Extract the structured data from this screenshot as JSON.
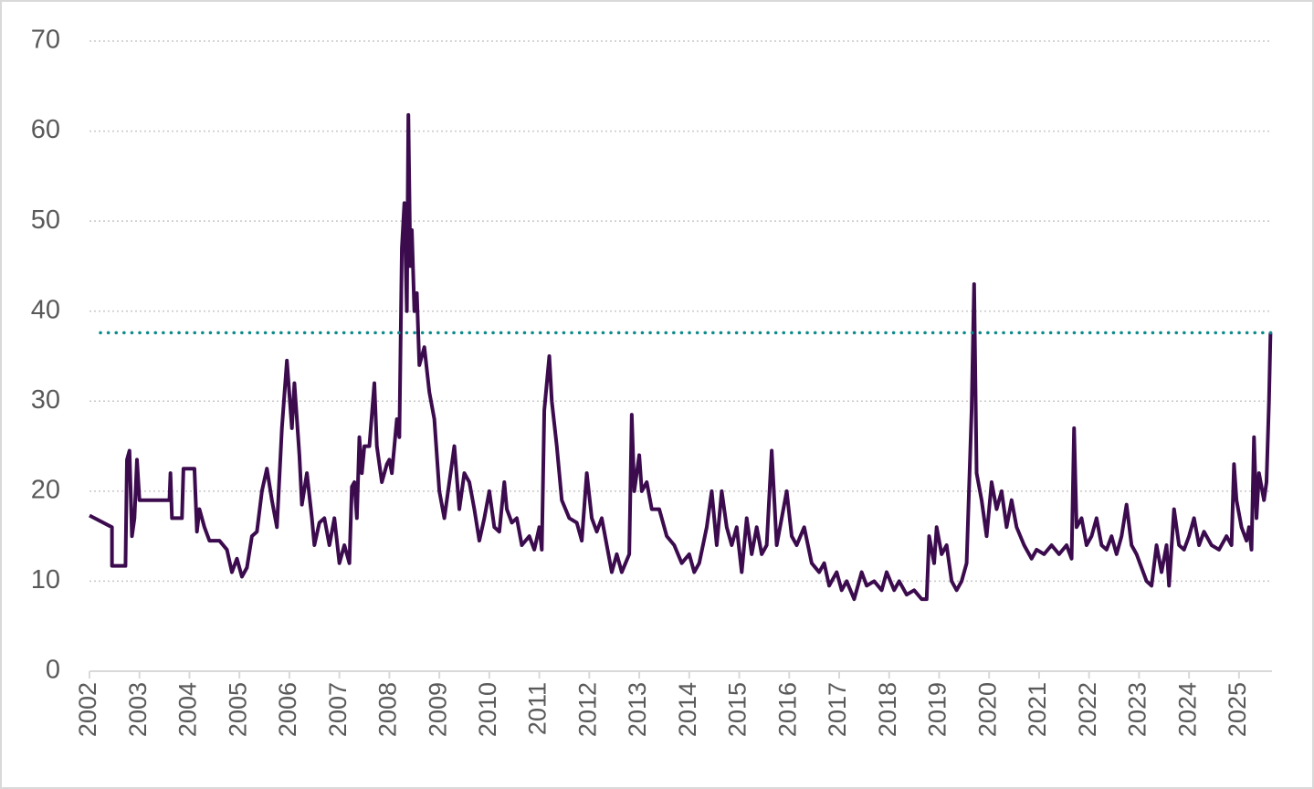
{
  "chart_data": {
    "type": "line",
    "x": [
      2002.0,
      2002.45,
      2002.45,
      2002.72,
      2002.75,
      2002.8,
      2002.85,
      2002.9,
      2002.95,
      2003.0,
      2003.6,
      2003.62,
      2003.65,
      2003.85,
      2003.88,
      2004.1,
      2004.15,
      2004.2,
      2004.3,
      2004.4,
      2004.6,
      2004.75,
      2004.85,
      2004.95,
      2005.05,
      2005.15,
      2005.25,
      2005.35,
      2005.45,
      2005.55,
      2005.65,
      2005.75,
      2005.85,
      2005.95,
      2006.05,
      2006.1,
      2006.2,
      2006.25,
      2006.35,
      2006.45,
      2006.5,
      2006.6,
      2006.7,
      2006.8,
      2006.9,
      2007.0,
      2007.1,
      2007.2,
      2007.25,
      2007.3,
      2007.35,
      2007.4,
      2007.45,
      2007.5,
      2007.6,
      2007.7,
      2007.75,
      2007.85,
      2007.95,
      2008.0,
      2008.05,
      2008.15,
      2008.2,
      2008.25,
      2008.3,
      2008.35,
      2008.38,
      2008.42,
      2008.45,
      2008.5,
      2008.55,
      2008.6,
      2008.7,
      2008.8,
      2008.9,
      2009.0,
      2009.1,
      2009.2,
      2009.3,
      2009.4,
      2009.5,
      2009.6,
      2009.7,
      2009.8,
      2009.9,
      2010.0,
      2010.1,
      2010.2,
      2010.3,
      2010.35,
      2010.45,
      2010.55,
      2010.65,
      2010.8,
      2010.9,
      2011.0,
      2011.05,
      2011.1,
      2011.2,
      2011.25,
      2011.35,
      2011.45,
      2011.6,
      2011.75,
      2011.85,
      2011.95,
      2012.05,
      2012.15,
      2012.25,
      2012.35,
      2012.45,
      2012.55,
      2012.65,
      2012.8,
      2012.85,
      2012.9,
      2013.0,
      2013.05,
      2013.15,
      2013.25,
      2013.4,
      2013.55,
      2013.7,
      2013.85,
      2014.0,
      2014.1,
      2014.2,
      2014.35,
      2014.45,
      2014.55,
      2014.65,
      2014.75,
      2014.85,
      2014.95,
      2015.05,
      2015.15,
      2015.25,
      2015.35,
      2015.45,
      2015.55,
      2015.65,
      2015.75,
      2015.85,
      2015.95,
      2016.05,
      2016.15,
      2016.3,
      2016.45,
      2016.6,
      2016.7,
      2016.8,
      2016.95,
      2017.05,
      2017.15,
      2017.3,
      2017.45,
      2017.55,
      2017.7,
      2017.85,
      2017.95,
      2018.1,
      2018.2,
      2018.35,
      2018.5,
      2018.65,
      2018.75,
      2018.8,
      2018.9,
      2018.95,
      2019.05,
      2019.15,
      2019.25,
      2019.35,
      2019.45,
      2019.55,
      2019.65,
      2019.7,
      2019.75,
      2019.85,
      2019.95,
      2020.05,
      2020.15,
      2020.25,
      2020.35,
      2020.45,
      2020.55,
      2020.7,
      2020.85,
      2020.95,
      2021.1,
      2021.25,
      2021.4,
      2021.55,
      2021.65,
      2021.7,
      2021.75,
      2021.85,
      2021.95,
      2022.05,
      2022.15,
      2022.25,
      2022.35,
      2022.45,
      2022.55,
      2022.65,
      2022.75,
      2022.85,
      2022.95,
      2023.05,
      2023.15,
      2023.25,
      2023.35,
      2023.45,
      2023.55,
      2023.6,
      2023.7,
      2023.8,
      2023.9,
      2024.0,
      2024.1,
      2024.2,
      2024.3,
      2024.45,
      2024.6,
      2024.75,
      2024.85,
      2024.9,
      2024.95,
      2025.05,
      2025.15,
      2025.2,
      2025.25,
      2025.3,
      2025.35,
      2025.4,
      2025.5,
      2025.55,
      2025.6,
      2025.63
    ],
    "series": [
      {
        "color": "#3b0b4e",
        "values": [
          17.3,
          16,
          11.7,
          11.7,
          23.5,
          24.5,
          15,
          17,
          23.5,
          19,
          19,
          22,
          17,
          17,
          22.5,
          22.5,
          15.5,
          18,
          16,
          14.5,
          14.5,
          13.5,
          11,
          12.5,
          10.5,
          11.5,
          15,
          15.5,
          20,
          22.5,
          19,
          16,
          27,
          34.5,
          27,
          32,
          24,
          18.5,
          22,
          17,
          14,
          16.5,
          17,
          14,
          17,
          12,
          14,
          12,
          20.5,
          21,
          17,
          26,
          22,
          25,
          25,
          32,
          25,
          21,
          23,
          23.5,
          22,
          28,
          26,
          47,
          52,
          40,
          61.8,
          45,
          49,
          40,
          42,
          34,
          36,
          31,
          28,
          20,
          17,
          21,
          25,
          18,
          22,
          21,
          18,
          14.5,
          17,
          20,
          16,
          15.5,
          21,
          18,
          16.5,
          17,
          14,
          15,
          13.5,
          16,
          13.5,
          29,
          35,
          30,
          25,
          19,
          17,
          16.5,
          14.5,
          22,
          17,
          15.5,
          17,
          14,
          11,
          13,
          11,
          13,
          28.5,
          20,
          24,
          20,
          21,
          18,
          18,
          15,
          14,
          12,
          13,
          11,
          12,
          16,
          20,
          14,
          20,
          16,
          14,
          16,
          11,
          17,
          13,
          16,
          13,
          14,
          24.5,
          14,
          17,
          20,
          15,
          14,
          16,
          12,
          11,
          12,
          9.5,
          11,
          9,
          10,
          8,
          11,
          9.5,
          10,
          9,
          11,
          9,
          10,
          8.5,
          9,
          8,
          8,
          15,
          12,
          16,
          13,
          14,
          10,
          9,
          10,
          12,
          29,
          43,
          22,
          19,
          15,
          21,
          18,
          20,
          16,
          19,
          16,
          14,
          12.5,
          13.5,
          13,
          14,
          13,
          14,
          12.5,
          27,
          16,
          17,
          14,
          15,
          17,
          14,
          13.5,
          15,
          13,
          15,
          18.5,
          14,
          13,
          11.5,
          10,
          9.5,
          14,
          11,
          14,
          9.5,
          18,
          14,
          13.5,
          15,
          17,
          14,
          15.5,
          14,
          13.5,
          15,
          14,
          23,
          19,
          16,
          14.5,
          16,
          13.5,
          26,
          17,
          22,
          19,
          21,
          30,
          37.6
        ]
      }
    ],
    "reference_line": {
      "value": 37.6,
      "color": "#0e8a8a"
    },
    "xlim": [
      2002,
      2025.66
    ],
    "xticks": [
      2002,
      2003,
      2004,
      2005,
      2006,
      2007,
      2008,
      2009,
      2010,
      2011,
      2012,
      2013,
      2014,
      2015,
      2016,
      2017,
      2018,
      2019,
      2020,
      2021,
      2022,
      2023,
      2024,
      2025
    ],
    "ylim": [
      0,
      70
    ],
    "yticks": [
      0,
      10,
      20,
      30,
      40,
      50,
      60,
      70
    ],
    "grid": true
  }
}
